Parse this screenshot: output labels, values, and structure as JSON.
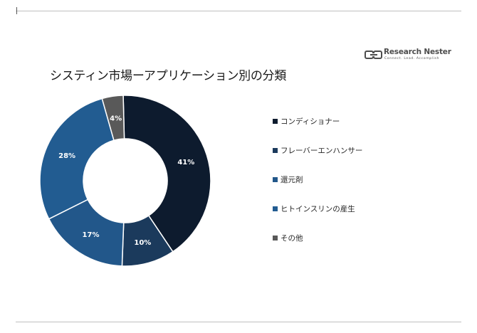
{
  "title": "システィン市場ーアプリケーション別の分類",
  "logo": {
    "name": "Research Nester",
    "tagline": "Connect. Lead. Accomplish"
  },
  "colors": [
    "#0d1b2e",
    "#1b3a5c",
    "#22578a",
    "#225c91",
    "#595959"
  ],
  "chart_data": {
    "type": "pie",
    "variant": "donut",
    "title": "システィン市場ーアプリケーション別の分類",
    "labels": [
      "コンディショナー",
      "フレーバーエンハンサー",
      "還元剤",
      "ヒトインスリンの産生",
      "その他"
    ],
    "values": [
      41,
      10,
      17,
      28,
      4
    ],
    "value_labels": [
      "41%",
      "10%",
      "17%",
      "28%",
      "4%"
    ],
    "unit": "%",
    "legend_position": "right"
  }
}
